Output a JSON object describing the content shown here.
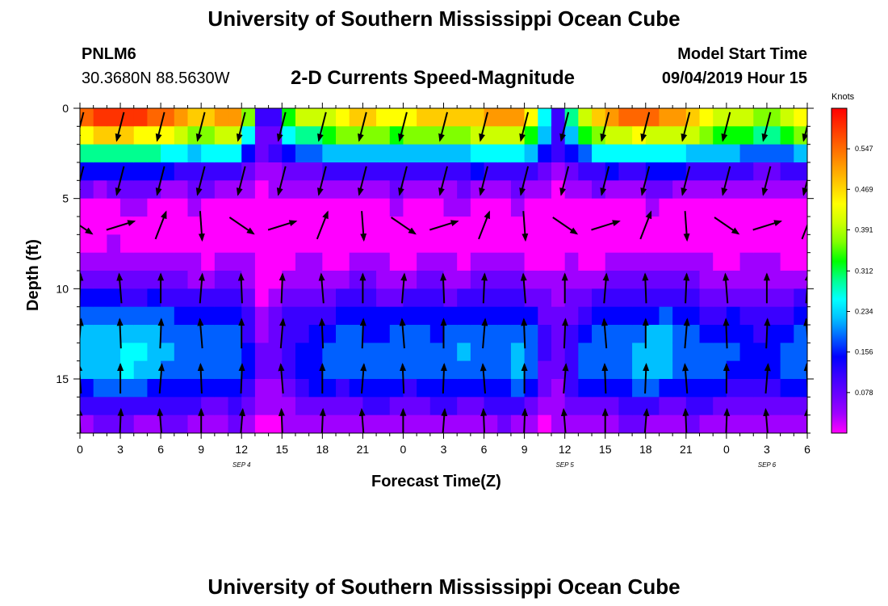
{
  "page": {
    "title_top": "University of Southern Mississippi Ocean Cube",
    "title_bottom": "University of Southern Mississippi Ocean Cube",
    "station_id": "PNLM6",
    "station_coords": "30.3680N 88.5630W",
    "model_label": "Model Start Time",
    "model_time": "09/04/2019 Hour 15"
  },
  "colors": {
    "palette": [
      "#ff00ff",
      "#a000ff",
      "#6a00ff",
      "#3a00ff",
      "#0000ff",
      "#0060ff",
      "#00c0ff",
      "#00ffff",
      "#00ff90",
      "#00ff00",
      "#80ff00",
      "#ccff00",
      "#ffff00",
      "#ffcc00",
      "#ff9900",
      "#ff6600",
      "#ff3300",
      "#ff0000"
    ]
  },
  "chart_data": {
    "type": "heatmap",
    "title": "2-D Currents Speed-Magnitude",
    "xlabel": "Forecast Time(Z)",
    "ylabel": "Depth (ft)",
    "x_tick_labels": [
      "0",
      "3",
      "6",
      "9",
      "12",
      "15",
      "18",
      "21",
      "0",
      "3",
      "6",
      "9",
      "12",
      "15",
      "18",
      "21",
      "0",
      "3",
      "6"
    ],
    "x_hours": [
      0,
      3,
      6,
      9,
      12,
      15,
      18,
      21,
      24,
      27,
      30,
      33,
      36,
      39,
      42,
      45,
      48,
      51,
      54
    ],
    "date_labels": [
      {
        "text": "SEP 4",
        "hour": 12
      },
      {
        "text": "SEP 5",
        "hour": 36
      },
      {
        "text": "SEP 6",
        "hour": 51
      }
    ],
    "y_ticks": [
      0,
      5,
      10,
      15
    ],
    "xlim": [
      0,
      54
    ],
    "ylim": [
      0,
      18
    ],
    "colorbar": {
      "unit": "Knots",
      "range": [
        0,
        0.625
      ],
      "ticks": [
        "0.078",
        "0.156",
        "0.234",
        "0.312",
        "0.391",
        "0.469",
        "0.547"
      ],
      "tick_values": [
        0.078,
        0.156,
        0.234,
        0.312,
        0.391,
        0.469,
        0.547
      ]
    },
    "depth_profile": {
      "depth": [
        0,
        1,
        2,
        3,
        4,
        5,
        6,
        7,
        8,
        9,
        10,
        11,
        12,
        13,
        14,
        15,
        16,
        17,
        18
      ],
      "base_speed": [
        0.55,
        0.48,
        0.34,
        0.18,
        0.1,
        0.04,
        0.02,
        0.015,
        0.03,
        0.06,
        0.1,
        0.15,
        0.19,
        0.21,
        0.22,
        0.2,
        0.14,
        0.08,
        0.05
      ]
    },
    "time_factor": {
      "hour": [
        0,
        3,
        6,
        9,
        12,
        13,
        14,
        16,
        18,
        21,
        24,
        27,
        30,
        33,
        35,
        36,
        38,
        42,
        45,
        48,
        51,
        54
      ],
      "factor": [
        1.05,
        1.15,
        1.05,
        0.9,
        1.0,
        0.35,
        0.3,
        0.7,
        0.8,
        0.9,
        0.85,
        0.9,
        0.95,
        1.0,
        0.35,
        0.5,
        0.9,
        1.05,
        0.95,
        0.8,
        0.7,
        0.9
      ]
    },
    "vectors": {
      "hours": [
        0,
        3,
        6,
        9,
        12,
        15,
        18,
        21,
        24,
        27,
        30,
        33,
        36,
        39,
        42,
        45,
        48,
        51,
        54
      ],
      "depths": [
        1,
        4,
        6.5,
        10,
        12.5,
        15,
        17.5
      ],
      "direction_by_depth": [
        "south",
        "south",
        "variable",
        "north",
        "north",
        "north",
        "north"
      ]
    }
  }
}
